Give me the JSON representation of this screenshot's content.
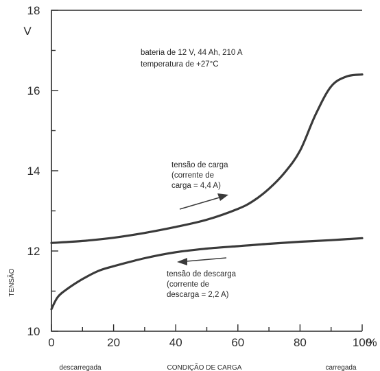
{
  "chart_data": {
    "type": "line",
    "xlabel": "CONDIÇÃO DE CARGA",
    "x_left_caption": "descarregada",
    "x_right_caption": "carregada",
    "x_unit": "%",
    "ylabel": "TENSÃO",
    "y_unit": "V",
    "xlim": [
      0,
      100
    ],
    "ylim": [
      10,
      18
    ],
    "x_ticks": [
      0,
      20,
      40,
      60,
      80,
      100
    ],
    "y_ticks": [
      10,
      12,
      14,
      16,
      18
    ],
    "x_tick_labels": [
      "0",
      "20",
      "40",
      "60",
      "80",
      "100"
    ],
    "y_tick_labels": [
      "10",
      "12",
      "14",
      "16",
      "18"
    ],
    "grid": false,
    "annotation_lines": [
      "bateria de 12 V, 44 Ah, 210 A",
      "temperatura de +27°C"
    ],
    "series": [
      {
        "label_lines": [
          "tensão de carga",
          "(corrente de",
          "carga = 4,4 A)"
        ],
        "direction": "increasing",
        "x": [
          0,
          10,
          20,
          30,
          40,
          50,
          60,
          65,
          70,
          75,
          80,
          85,
          90,
          95,
          100
        ],
        "y": [
          12.2,
          12.25,
          12.33,
          12.45,
          12.6,
          12.78,
          13.05,
          13.25,
          13.55,
          13.95,
          14.5,
          15.4,
          16.1,
          16.35,
          16.4
        ]
      },
      {
        "label_lines": [
          "tensão de descarga",
          "(corrente de",
          "descarga = 2,2 A)"
        ],
        "direction": "decreasing",
        "x": [
          0,
          2,
          5,
          10,
          15,
          20,
          30,
          40,
          50,
          60,
          70,
          80,
          90,
          100
        ],
        "y": [
          10.55,
          10.85,
          11.05,
          11.3,
          11.5,
          11.62,
          11.82,
          11.97,
          12.06,
          12.12,
          12.18,
          12.23,
          12.27,
          12.32
        ]
      }
    ]
  }
}
